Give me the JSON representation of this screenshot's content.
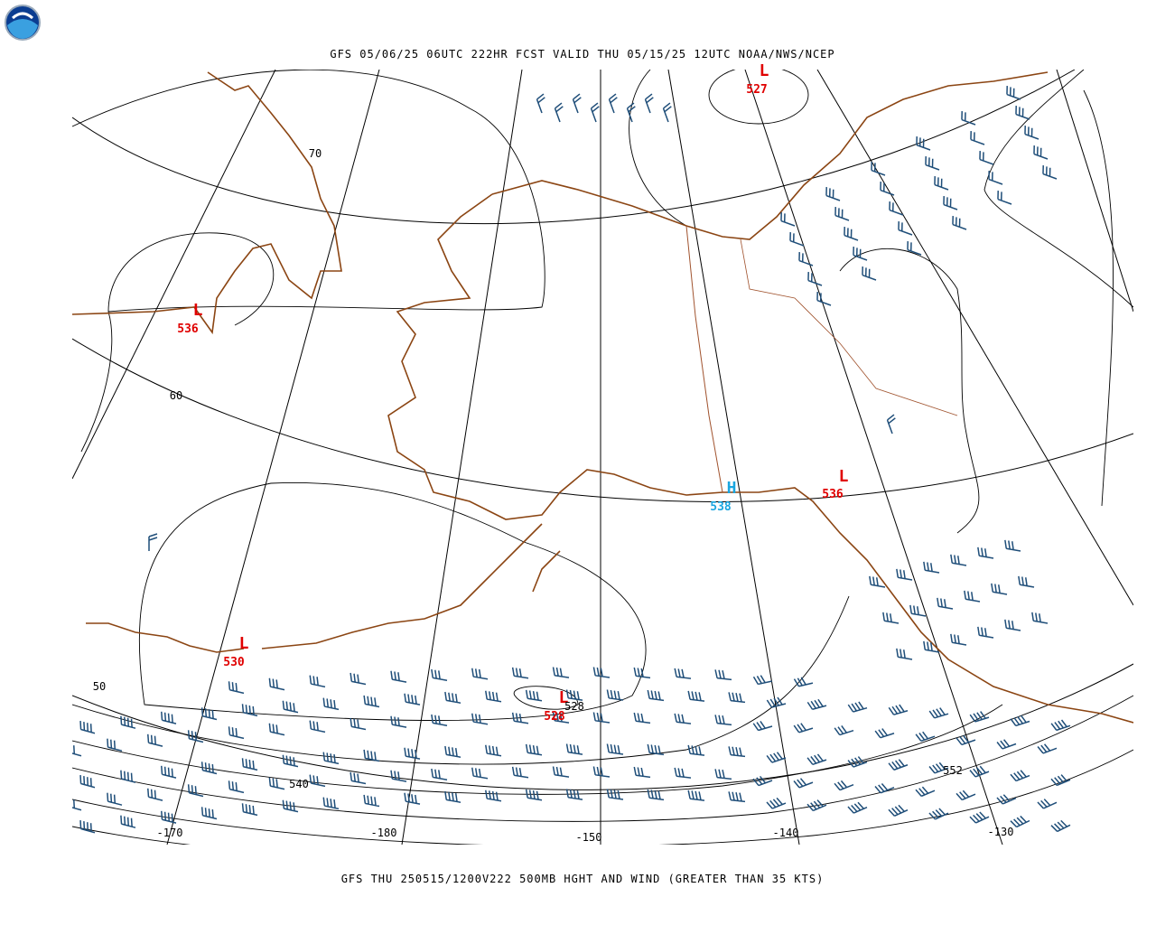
{
  "header": {
    "title": "GFS 05/06/25 06UTC 222HR FCST VALID THU 05/15/25 12UTC NOAA/NWS/NCEP"
  },
  "footer": {
    "caption": "GFS THU 250515/1200V222 500MB HGHT AND WIND (GREATER THAN 35 KTS)"
  },
  "map": {
    "centers": [
      {
        "symbol": "L",
        "value": "527"
      },
      {
        "symbol": "L",
        "value": "536"
      },
      {
        "symbol": "L",
        "value": "530"
      },
      {
        "symbol": "L",
        "value": "528"
      },
      {
        "symbol": "H",
        "value": "538"
      },
      {
        "symbol": "L",
        "value": "536"
      }
    ],
    "contour_labels": [
      "528",
      "540",
      "552"
    ],
    "lat_labels": [
      "70",
      "60",
      "50"
    ],
    "lon_labels": [
      "-170",
      "-180",
      "-150",
      "-140",
      "-130"
    ]
  }
}
